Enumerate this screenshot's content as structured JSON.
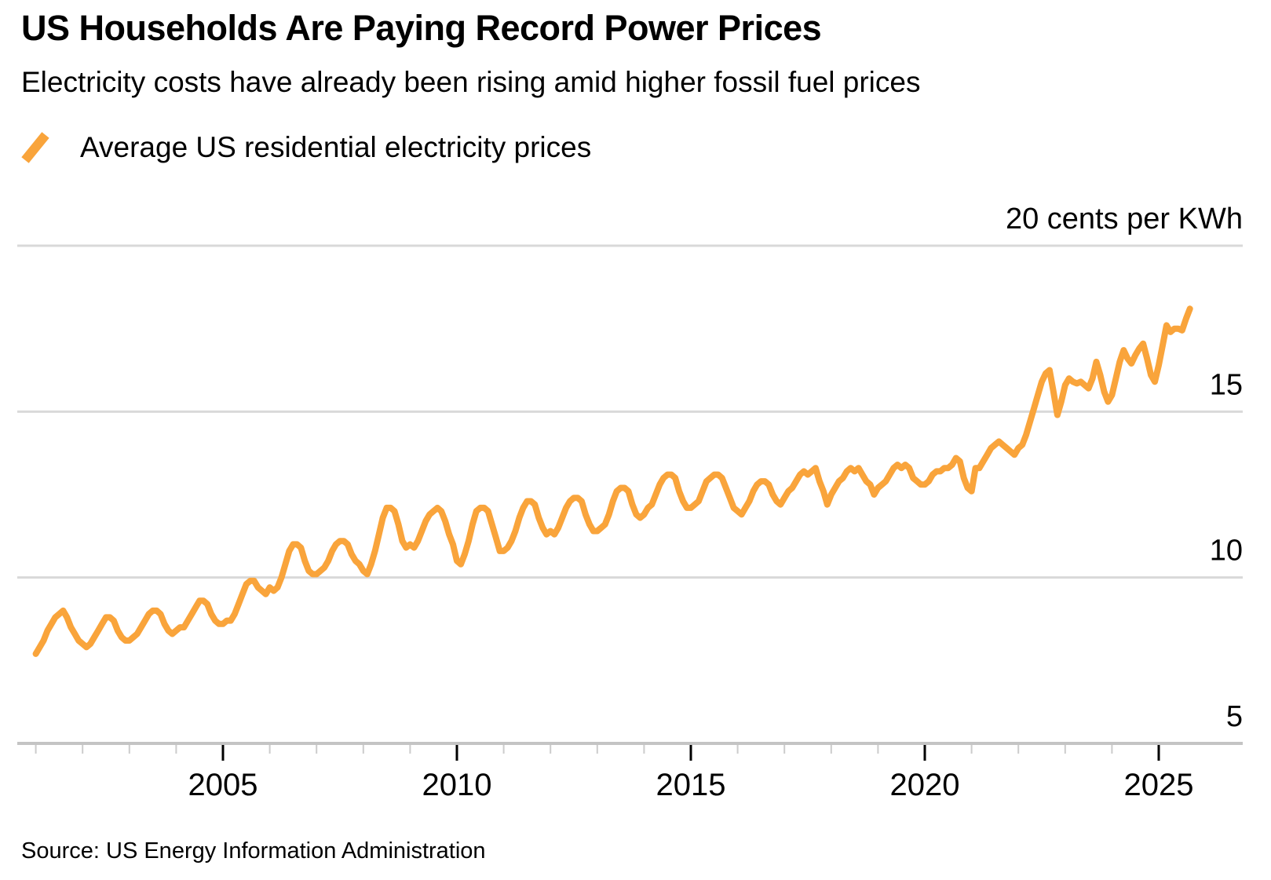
{
  "header": {
    "title": "US Households Are Paying Record Power Prices",
    "subtitle": "Electricity costs have already been rising amid higher fossil fuel prices"
  },
  "legend": {
    "label": "Average US residential electricity prices"
  },
  "source": {
    "text": "Source: US Energy Information Administration"
  },
  "colors": {
    "line": "#F9A43B",
    "gridline": "#D9D9D9",
    "baseline": "#C4C4C4",
    "minor_tick": "#CCCCCC",
    "major_tick": "#000000",
    "text": "#000000",
    "background": "#FFFFFF"
  },
  "chart_data": {
    "type": "line",
    "title": "US Households Are Paying Record Power Prices",
    "xlabel": "",
    "ylabel": "cents per KWh",
    "unit_label": "20 cents per KWh",
    "grid": true,
    "x_range_years": [
      2001.0,
      2025.75
    ],
    "y_axis": {
      "range": [
        5,
        20
      ],
      "ticks": [
        {
          "value": 20,
          "label": "20 cents per KWh"
        },
        {
          "value": 15,
          "label": "15"
        },
        {
          "value": 10,
          "label": "10"
        },
        {
          "value": 5,
          "label": "5"
        }
      ]
    },
    "x_axis": {
      "minor_tick_years_step": 1,
      "first_tick_year": 2001,
      "last_tick_year": 2025,
      "major_ticks": [
        2005,
        2010,
        2015,
        2020,
        2025
      ],
      "labels": [
        "2005",
        "2010",
        "2015",
        "2020",
        "2025"
      ]
    },
    "series": [
      {
        "name": "Average US residential electricity prices",
        "unit": "cents per KWh",
        "frequency": "monthly",
        "start_year": 2001,
        "start_month": 1,
        "values": [
          7.7,
          7.9,
          8.1,
          8.4,
          8.6,
          8.8,
          8.9,
          9.0,
          8.8,
          8.5,
          8.3,
          8.1,
          8.0,
          7.9,
          8.0,
          8.2,
          8.4,
          8.6,
          8.8,
          8.8,
          8.7,
          8.4,
          8.2,
          8.1,
          8.1,
          8.2,
          8.3,
          8.5,
          8.7,
          8.9,
          9.0,
          9.0,
          8.9,
          8.6,
          8.4,
          8.3,
          8.4,
          8.5,
          8.5,
          8.7,
          8.9,
          9.1,
          9.3,
          9.3,
          9.2,
          8.9,
          8.7,
          8.6,
          8.6,
          8.7,
          8.7,
          8.9,
          9.2,
          9.5,
          9.8,
          9.9,
          9.9,
          9.7,
          9.6,
          9.5,
          9.7,
          9.6,
          9.7,
          10.0,
          10.4,
          10.8,
          11.0,
          11.0,
          10.9,
          10.5,
          10.2,
          10.1,
          10.1,
          10.2,
          10.3,
          10.5,
          10.8,
          11.0,
          11.1,
          11.1,
          11.0,
          10.7,
          10.5,
          10.4,
          10.2,
          10.1,
          10.4,
          10.8,
          11.3,
          11.8,
          12.1,
          12.1,
          12.0,
          11.6,
          11.1,
          10.9,
          11.0,
          10.9,
          11.1,
          11.4,
          11.7,
          11.9,
          12.0,
          12.1,
          12.0,
          11.7,
          11.3,
          11.0,
          10.5,
          10.4,
          10.7,
          11.1,
          11.6,
          12.0,
          12.1,
          12.1,
          12.0,
          11.6,
          11.2,
          10.8,
          10.8,
          10.9,
          11.1,
          11.4,
          11.8,
          12.1,
          12.3,
          12.3,
          12.2,
          11.8,
          11.5,
          11.3,
          11.4,
          11.3,
          11.5,
          11.8,
          12.1,
          12.3,
          12.4,
          12.4,
          12.3,
          11.9,
          11.6,
          11.4,
          11.4,
          11.5,
          11.6,
          11.9,
          12.3,
          12.6,
          12.7,
          12.7,
          12.6,
          12.2,
          11.9,
          11.8,
          11.9,
          12.1,
          12.2,
          12.5,
          12.8,
          13.0,
          13.1,
          13.1,
          13.0,
          12.6,
          12.3,
          12.1,
          12.1,
          12.2,
          12.3,
          12.6,
          12.9,
          13.0,
          13.1,
          13.1,
          13.0,
          12.7,
          12.4,
          12.1,
          12.0,
          11.9,
          12.1,
          12.3,
          12.6,
          12.8,
          12.9,
          12.9,
          12.8,
          12.5,
          12.3,
          12.2,
          12.4,
          12.6,
          12.7,
          12.9,
          13.1,
          13.2,
          13.1,
          13.2,
          13.3,
          12.9,
          12.6,
          12.2,
          12.5,
          12.7,
          12.9,
          13.0,
          13.2,
          13.3,
          13.2,
          13.3,
          13.1,
          12.9,
          12.8,
          12.5,
          12.7,
          12.8,
          12.9,
          13.1,
          13.3,
          13.4,
          13.3,
          13.4,
          13.3,
          13.0,
          12.9,
          12.8,
          12.8,
          12.9,
          13.1,
          13.2,
          13.2,
          13.3,
          13.3,
          13.4,
          13.6,
          13.5,
          13.0,
          12.7,
          12.6,
          13.3,
          13.3,
          13.5,
          13.7,
          13.9,
          14.0,
          14.1,
          14.0,
          13.9,
          13.8,
          13.7,
          13.9,
          14.0,
          14.3,
          14.7,
          15.1,
          15.5,
          15.9,
          16.15,
          16.25,
          15.6,
          14.9,
          15.3,
          15.8,
          16.0,
          15.9,
          15.85,
          15.9,
          15.8,
          15.7,
          16.0,
          16.5,
          16.1,
          15.6,
          15.3,
          15.5,
          16.0,
          16.5,
          16.85,
          16.6,
          16.45,
          16.7,
          16.9,
          17.05,
          16.6,
          16.1,
          15.9,
          16.4,
          17.0,
          17.6,
          17.4,
          17.5,
          17.5,
          17.45,
          17.8,
          18.1
        ]
      }
    ]
  }
}
